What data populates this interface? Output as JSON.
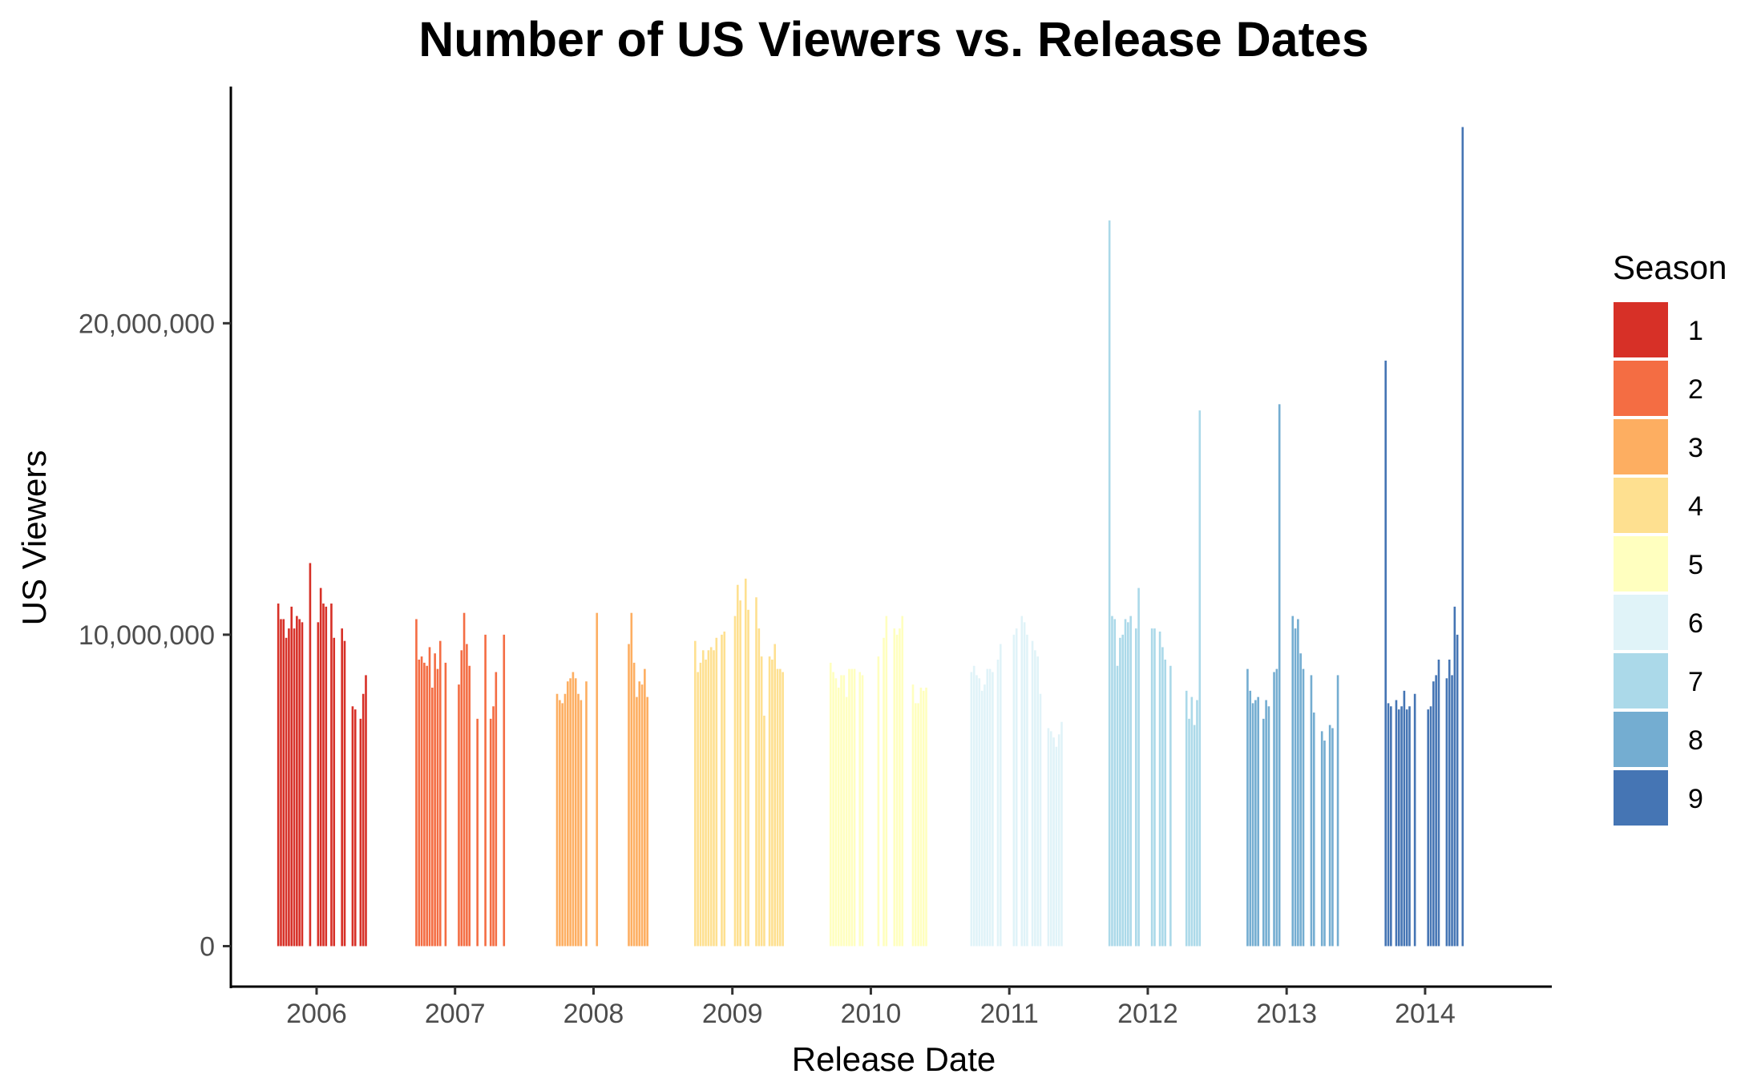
{
  "chart_data": {
    "type": "bar",
    "title": "Number of US Viewers vs. Release Dates",
    "xlabel": "Release Date",
    "ylabel": "US Viewers",
    "x_ticks": [
      "2006",
      "2007",
      "2008",
      "2009",
      "2010",
      "2011",
      "2012",
      "2013",
      "2014"
    ],
    "y_ticks": [
      {
        "value": 0,
        "label": "0"
      },
      {
        "value": 10000000,
        "label": "10,000,000"
      },
      {
        "value": 20000000,
        "label": "20,000,000"
      }
    ],
    "xlim": [
      "2005-05-20",
      "2014-12-01"
    ],
    "ylim": [
      -1300000,
      27600000
    ],
    "grid": false,
    "legend": {
      "title": "Season",
      "position": "right"
    },
    "series": [
      {
        "name": "1",
        "color": "#D73027",
        "x": [
          "2005-09-22",
          "2005-09-29",
          "2005-10-06",
          "2005-10-13",
          "2005-10-20",
          "2005-10-27",
          "2005-11-03",
          "2005-11-10",
          "2005-11-17",
          "2005-11-24",
          "2005-12-15",
          "2006-01-05",
          "2006-01-12",
          "2006-01-19",
          "2006-01-26",
          "2006-02-09",
          "2006-02-16",
          "2006-03-09",
          "2006-03-16",
          "2006-04-06",
          "2006-04-13",
          "2006-04-27",
          "2006-05-04",
          "2006-05-11"
        ],
        "values": [
          11000000,
          10500000,
          10500000,
          9900000,
          10200000,
          10900000,
          10200000,
          10600000,
          10500000,
          10400000,
          12300000,
          10400000,
          11500000,
          11000000,
          10900000,
          11000000,
          9900000,
          10200000,
          9800000,
          7700000,
          7600000,
          7300000,
          8100000,
          8700000
        ]
      },
      {
        "name": "2",
        "color": "#F46D43",
        "x": [
          "2006-09-21",
          "2006-09-28",
          "2006-10-05",
          "2006-10-12",
          "2006-10-19",
          "2006-10-26",
          "2006-11-02",
          "2006-11-09",
          "2006-11-16",
          "2006-11-23",
          "2006-12-07",
          "2007-01-11",
          "2007-01-18",
          "2007-01-25",
          "2007-02-01",
          "2007-02-08",
          "2007-03-01",
          "2007-03-22",
          "2007-04-05",
          "2007-04-12",
          "2007-04-19",
          "2007-05-10"
        ],
        "values": [
          10500000,
          9200000,
          9300000,
          9100000,
          9000000,
          9600000,
          8300000,
          9400000,
          8900000,
          9800000,
          9100000,
          8400000,
          9500000,
          10700000,
          9700000,
          9000000,
          7300000,
          10000000,
          7300000,
          7700000,
          8800000,
          10000000
        ]
      },
      {
        "name": "3",
        "color": "#FDAE61",
        "x": [
          "2007-09-27",
          "2007-10-04",
          "2007-10-11",
          "2007-10-18",
          "2007-10-25",
          "2007-11-01",
          "2007-11-08",
          "2007-11-15",
          "2007-11-22",
          "2007-11-29",
          "2007-12-13",
          "2008-01-10",
          "2008-04-03",
          "2008-04-10",
          "2008-04-17",
          "2008-04-24",
          "2008-05-01",
          "2008-05-08",
          "2008-05-15",
          "2008-05-22"
        ],
        "values": [
          8100000,
          7900000,
          7800000,
          8100000,
          8500000,
          8600000,
          8800000,
          8600000,
          8100000,
          7900000,
          8500000,
          10700000,
          9700000,
          10700000,
          9100000,
          8000000,
          8500000,
          8400000,
          8900000,
          8000000
        ]
      },
      {
        "name": "4",
        "color": "#FEE090",
        "x": [
          "2008-09-25",
          "2008-10-02",
          "2008-10-09",
          "2008-10-16",
          "2008-10-23",
          "2008-10-30",
          "2008-11-06",
          "2008-11-13",
          "2008-11-20",
          "2008-12-04",
          "2008-12-11",
          "2009-01-08",
          "2009-01-15",
          "2009-01-22",
          "2009-02-05",
          "2009-02-12",
          "2009-03-05",
          "2009-03-12",
          "2009-03-19",
          "2009-03-26",
          "2009-04-09",
          "2009-04-16",
          "2009-04-23",
          "2009-04-30",
          "2009-05-07",
          "2009-05-14"
        ],
        "values": [
          9800000,
          8800000,
          9100000,
          9500000,
          9200000,
          9500000,
          9600000,
          9500000,
          9900000,
          10000000,
          10100000,
          10600000,
          11600000,
          11100000,
          11800000,
          10800000,
          11200000,
          10200000,
          9300000,
          7400000,
          9300000,
          9200000,
          9700000,
          8900000,
          8900000,
          8800000
        ]
      },
      {
        "name": "5",
        "color": "#FFFFBF",
        "x": [
          "2009-09-17",
          "2009-09-24",
          "2009-10-01",
          "2009-10-08",
          "2009-10-15",
          "2009-10-22",
          "2009-10-29",
          "2009-11-05",
          "2009-11-12",
          "2009-11-19",
          "2009-12-03",
          "2009-12-10",
          "2010-01-21",
          "2010-02-04",
          "2010-02-11",
          "2010-03-04",
          "2010-03-11",
          "2010-03-18",
          "2010-03-25",
          "2010-04-22",
          "2010-04-29",
          "2010-05-06",
          "2010-05-13",
          "2010-05-20",
          "2010-05-27"
        ],
        "values": [
          9100000,
          8800000,
          8600000,
          8300000,
          8700000,
          8700000,
          8000000,
          8900000,
          8900000,
          8900000,
          8800000,
          8700000,
          9300000,
          9900000,
          10600000,
          10200000,
          10000000,
          10200000,
          10600000,
          8400000,
          7800000,
          7800000,
          8300000,
          8200000,
          8300000
        ]
      },
      {
        "name": "6",
        "color": "#E0F3F8",
        "x": [
          "2010-09-23",
          "2010-09-30",
          "2010-10-07",
          "2010-10-14",
          "2010-10-21",
          "2010-10-28",
          "2010-11-04",
          "2010-11-11",
          "2010-11-18",
          "2010-12-02",
          "2010-12-09",
          "2011-01-13",
          "2011-01-20",
          "2011-02-03",
          "2011-02-10",
          "2011-02-17",
          "2011-03-03",
          "2011-03-10",
          "2011-03-17",
          "2011-03-24",
          "2011-04-14",
          "2011-04-21",
          "2011-04-28",
          "2011-05-05",
          "2011-05-12",
          "2011-05-19"
        ],
        "values": [
          8800000,
          9000000,
          8700000,
          8600000,
          8200000,
          8400000,
          8900000,
          8900000,
          8800000,
          9200000,
          9700000,
          10000000,
          10200000,
          10600000,
          10400000,
          10000000,
          9800000,
          9500000,
          9300000,
          8100000,
          7000000,
          6900000,
          6700000,
          6400000,
          6800000,
          7200000
        ]
      },
      {
        "name": "7",
        "color": "#ABD9E9",
        "x": [
          "2011-09-22",
          "2011-09-29",
          "2011-10-06",
          "2011-10-13",
          "2011-10-20",
          "2011-10-27",
          "2011-11-03",
          "2011-11-10",
          "2011-11-17",
          "2011-12-01",
          "2011-12-08",
          "2012-01-12",
          "2012-01-19",
          "2012-02-02",
          "2012-02-09",
          "2012-02-16",
          "2012-03-01",
          "2012-04-12",
          "2012-04-19",
          "2012-04-26",
          "2012-05-03",
          "2012-05-10",
          "2012-05-17"
        ],
        "values": [
          23300000,
          10600000,
          10500000,
          9000000,
          9900000,
          10000000,
          10500000,
          10400000,
          10600000,
          10200000,
          11500000,
          10200000,
          10200000,
          10100000,
          9600000,
          9200000,
          9000000,
          8200000,
          7300000,
          8000000,
          7100000,
          7900000,
          17200000
        ]
      },
      {
        "name": "8",
        "color": "#74ADD1",
        "x": [
          "2012-09-20",
          "2012-09-27",
          "2012-10-04",
          "2012-10-11",
          "2012-10-18",
          "2012-11-01",
          "2012-11-08",
          "2012-11-15",
          "2012-11-29",
          "2012-12-06",
          "2012-12-13",
          "2013-01-17",
          "2013-01-24",
          "2013-01-31",
          "2013-02-07",
          "2013-02-14",
          "2013-03-07",
          "2013-03-14",
          "2013-04-04",
          "2013-04-11",
          "2013-04-25",
          "2013-05-02",
          "2013-05-16"
        ],
        "values": [
          8900000,
          8200000,
          7800000,
          7900000,
          8000000,
          7300000,
          7900000,
          7700000,
          8800000,
          8900000,
          17400000,
          10600000,
          10200000,
          10500000,
          9400000,
          8900000,
          8700000,
          7500000,
          6900000,
          6600000,
          7100000,
          7000000,
          8700000
        ]
      },
      {
        "name": "9",
        "color": "#4575B4",
        "x": [
          "2013-09-19",
          "2013-09-26",
          "2013-10-03",
          "2013-10-17",
          "2013-10-24",
          "2013-10-31",
          "2013-11-07",
          "2013-11-14",
          "2013-11-21",
          "2013-12-05",
          "2014-01-09",
          "2014-01-16",
          "2014-01-23",
          "2014-01-30",
          "2014-02-06",
          "2014-02-27",
          "2014-03-06",
          "2014-03-13",
          "2014-03-20",
          "2014-03-27",
          "2014-04-10"
        ],
        "values": [
          18800000,
          7800000,
          7700000,
          7900000,
          7600000,
          7700000,
          8200000,
          7600000,
          7700000,
          8100000,
          7600000,
          7700000,
          8500000,
          8700000,
          9200000,
          8600000,
          9200000,
          8700000,
          10900000,
          10000000,
          26300000
        ]
      }
    ]
  }
}
